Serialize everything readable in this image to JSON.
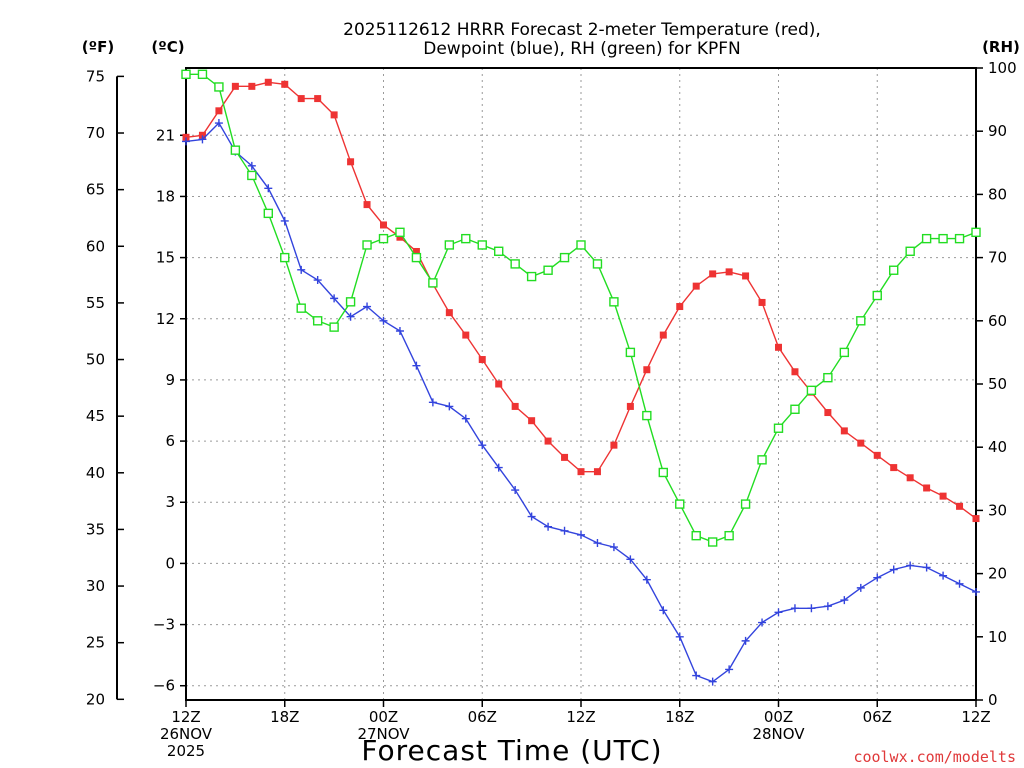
{
  "chart_data": {
    "type": "line",
    "title": [
      "2025112612 HRRR Forecast 2-meter Temperature (red),",
      "Dewpoint (blue), RH (green) for KPFN"
    ],
    "xlabel": "Forecast Time (UTC)",
    "credit": "coolwx.com/modelts",
    "unit_labels": {
      "left_f": "(ºF)",
      "left_c": "(ºC)",
      "right_rh": "(RH)"
    },
    "x": [
      0,
      1,
      2,
      3,
      4,
      5,
      6,
      7,
      8,
      9,
      10,
      11,
      12,
      13,
      14,
      15,
      16,
      17,
      18,
      19,
      20,
      21,
      22,
      23,
      24,
      25,
      26,
      27,
      28,
      29,
      30,
      31,
      32,
      33,
      34,
      35,
      36,
      37,
      38,
      39,
      40,
      41,
      42,
      43,
      44,
      45,
      46,
      47,
      48
    ],
    "xlim": [
      0,
      48
    ],
    "x_ticks": [
      {
        "x": 0,
        "lines": [
          "12Z",
          "26NOV",
          "2025"
        ]
      },
      {
        "x": 6,
        "lines": [
          "18Z"
        ]
      },
      {
        "x": 12,
        "lines": [
          "00Z",
          "27NOV"
        ]
      },
      {
        "x": 18,
        "lines": [
          "06Z"
        ]
      },
      {
        "x": 24,
        "lines": [
          "12Z"
        ]
      },
      {
        "x": 30,
        "lines": [
          "18Z"
        ]
      },
      {
        "x": 36,
        "lines": [
          "00Z",
          "28NOV"
        ]
      },
      {
        "x": 42,
        "lines": [
          "06Z"
        ]
      },
      {
        "x": 48,
        "lines": [
          "12Z"
        ]
      }
    ],
    "y_celsius_range": [
      -6.7,
      24.3
    ],
    "y_fahrenheit_ticks": [
      "20",
      "25",
      "30",
      "35",
      "40",
      "45",
      "50",
      "55",
      "60",
      "65",
      "70",
      "75"
    ],
    "y_celsius_ticks": [
      "−6",
      "−3",
      "0",
      "3",
      "6",
      "9",
      "12",
      "15",
      "18",
      "21"
    ],
    "y_rh_range": [
      0,
      100
    ],
    "y_rh_ticks": [
      "0",
      "10",
      "20",
      "30",
      "40",
      "50",
      "60",
      "70",
      "80",
      "90",
      "100"
    ],
    "series": [
      {
        "name": "Temperature",
        "unit": "°C",
        "color": "#ee3333",
        "marker": "filled-square",
        "values": [
          20.9,
          21.0,
          22.2,
          23.4,
          23.4,
          23.6,
          23.5,
          22.8,
          22.8,
          22.0,
          19.7,
          17.6,
          16.6,
          16.0,
          15.3,
          13.7,
          12.3,
          11.2,
          10.0,
          8.8,
          7.7,
          7.0,
          6.0,
          5.2,
          4.5,
          4.5,
          5.8,
          7.7,
          9.5,
          11.2,
          12.6,
          13.6,
          14.2,
          14.3,
          14.1,
          12.8,
          10.6,
          9.4,
          8.4,
          7.4,
          6.5,
          5.9,
          5.3,
          4.7,
          4.2,
          3.7,
          3.3,
          2.8,
          2.2
        ]
      },
      {
        "name": "Dewpoint",
        "unit": "°C",
        "color": "#3344dd",
        "marker": "plus",
        "values": [
          20.7,
          20.8,
          21.6,
          20.2,
          19.5,
          18.4,
          16.8,
          14.4,
          13.9,
          13.0,
          12.1,
          12.6,
          11.9,
          11.4,
          9.7,
          7.9,
          7.7,
          7.1,
          5.8,
          4.7,
          3.6,
          2.3,
          1.8,
          1.6,
          1.4,
          1.0,
          0.8,
          0.2,
          -0.8,
          -2.3,
          -3.6,
          -5.5,
          -5.8,
          -5.2,
          -3.8,
          -2.9,
          -2.4,
          -2.2,
          -2.2,
          -2.1,
          -1.8,
          -1.2,
          -0.7,
          -0.3,
          -0.1,
          -0.2,
          -0.6,
          -1.0,
          -1.4
        ]
      },
      {
        "name": "RH",
        "unit": "%",
        "color": "#22dd22",
        "marker": "open-square",
        "values": [
          99,
          99,
          97,
          87,
          83,
          77,
          70,
          62,
          60,
          59,
          63,
          72,
          73,
          74,
          70,
          66,
          72,
          73,
          72,
          71,
          69,
          67,
          68,
          70,
          72,
          69,
          63,
          55,
          45,
          36,
          31,
          26,
          25,
          26,
          31,
          38,
          43,
          46,
          49,
          51,
          55,
          60,
          64,
          68,
          71,
          73,
          73,
          73,
          74
        ]
      }
    ]
  }
}
